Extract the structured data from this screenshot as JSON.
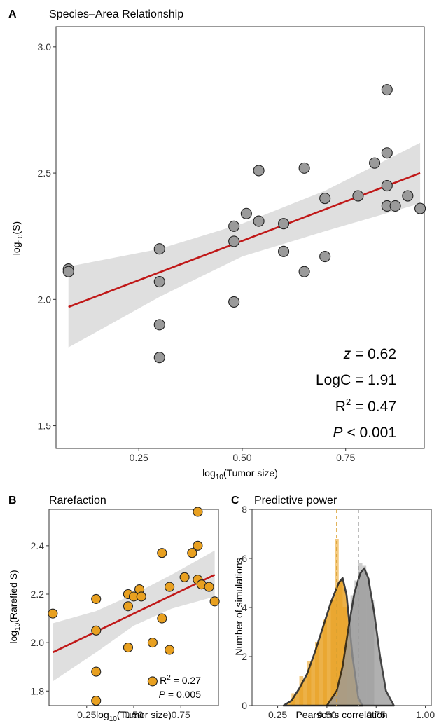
{
  "colors": {
    "points_gray": "#9a9a9a",
    "points_orange": "#e8a020",
    "regression": "#c01818",
    "ci_band": "#d9d9d9",
    "hist_orange": "#f0b44a",
    "hist_gray": "#b8b8b8",
    "dash_orange": "#d9a030",
    "dash_gray": "#9a9a9a"
  },
  "panelA": {
    "letter": "A",
    "title": "Species–Area Relationship",
    "ylabel_main": "log",
    "ylabel_sub": "10",
    "ylabel_rest": "(S)",
    "xlabel_main": "log",
    "xlabel_sub": "10",
    "xlabel_rest": "(Tumor size)",
    "stats": {
      "z_label": "z",
      "z_value": " = 0.62",
      "logc": "LogC = 1.91",
      "r2_main": "R",
      "r2_sup": "2",
      "r2_value": " = 0.47",
      "p_label": "P",
      "p_value": " < 0.001"
    }
  },
  "panelB": {
    "letter": "B",
    "title": "Rarefaction",
    "ylabel_main": "log",
    "ylabel_sub": "10",
    "ylabel_rest": "(Rarefied S)",
    "xlabel_main": "log",
    "xlabel_sub": "10",
    "xlabel_rest": "(Tumor size)",
    "stats": {
      "r2_main": "R",
      "r2_sup": "2",
      "r2_value": " = 0.27",
      "p_label": "P",
      "p_value": " = 0.005"
    }
  },
  "panelC": {
    "letter": "C",
    "title": "Predictive power",
    "ylabel": "Number of simulations",
    "xlabel": "Pearson's correlation"
  },
  "chart_data": [
    {
      "type": "scatter",
      "title": "Species–Area Relationship",
      "xlabel": "log10(Tumor size)",
      "ylabel": "log10(S)",
      "xlim": [
        0.05,
        0.94
      ],
      "ylim": [
        1.41,
        3.08
      ],
      "xticks": [
        0.25,
        0.5,
        0.75
      ],
      "xtick_labels": [
        "0.25",
        "0.50",
        "0.75"
      ],
      "yticks": [
        1.5,
        2.0,
        2.5,
        3.0
      ],
      "ytick_labels": [
        "1.5",
        "2.0",
        "2.5",
        "3.0"
      ],
      "grid": false,
      "points": [
        [
          0.08,
          2.12
        ],
        [
          0.08,
          2.11
        ],
        [
          0.3,
          2.2
        ],
        [
          0.3,
          2.07
        ],
        [
          0.3,
          1.9
        ],
        [
          0.3,
          1.77
        ],
        [
          0.48,
          2.29
        ],
        [
          0.48,
          2.23
        ],
        [
          0.48,
          1.99
        ],
        [
          0.51,
          2.34
        ],
        [
          0.54,
          2.51
        ],
        [
          0.54,
          2.31
        ],
        [
          0.6,
          2.3
        ],
        [
          0.6,
          2.19
        ],
        [
          0.65,
          2.52
        ],
        [
          0.65,
          2.11
        ],
        [
          0.7,
          2.4
        ],
        [
          0.7,
          2.17
        ],
        [
          0.78,
          2.41
        ],
        [
          0.82,
          2.54
        ],
        [
          0.85,
          2.83
        ],
        [
          0.85,
          2.58
        ],
        [
          0.85,
          2.45
        ],
        [
          0.85,
          2.37
        ],
        [
          0.87,
          2.37
        ],
        [
          0.9,
          2.41
        ],
        [
          0.93,
          2.36
        ]
      ],
      "fit": {
        "x": [
          0.08,
          0.93
        ],
        "y": [
          1.97,
          2.5
        ]
      },
      "ci_band": {
        "x": [
          0.08,
          0.3,
          0.5,
          0.7,
          0.93
        ],
        "lower": [
          1.81,
          2.01,
          2.17,
          2.27,
          2.38
        ],
        "upper": [
          2.13,
          2.2,
          2.3,
          2.43,
          2.62
        ]
      }
    },
    {
      "type": "scatter",
      "title": "Rarefaction",
      "xlabel": "log10(Tumor size)",
      "ylabel": "log10(Rarefied S)",
      "xlim": [
        0.05,
        0.95
      ],
      "ylim": [
        1.74,
        2.55
      ],
      "xticks": [
        0.25,
        0.5,
        0.75
      ],
      "xtick_labels": [
        "0.25",
        "0.50",
        "0.75"
      ],
      "yticks": [
        1.8,
        2.0,
        2.2,
        2.4
      ],
      "ytick_labels": [
        "1.8",
        "2.0",
        "2.2",
        "2.4"
      ],
      "grid": false,
      "points": [
        [
          0.07,
          2.12
        ],
        [
          0.3,
          2.18
        ],
        [
          0.3,
          2.05
        ],
        [
          0.3,
          1.88
        ],
        [
          0.3,
          1.76
        ],
        [
          0.47,
          2.2
        ],
        [
          0.47,
          2.15
        ],
        [
          0.47,
          1.98
        ],
        [
          0.5,
          2.19
        ],
        [
          0.53,
          2.22
        ],
        [
          0.54,
          2.19
        ],
        [
          0.6,
          2.0
        ],
        [
          0.6,
          1.84
        ],
        [
          0.65,
          2.37
        ],
        [
          0.65,
          2.1
        ],
        [
          0.69,
          2.23
        ],
        [
          0.69,
          1.97
        ],
        [
          0.77,
          2.27
        ],
        [
          0.81,
          2.37
        ],
        [
          0.84,
          2.54
        ],
        [
          0.84,
          2.4
        ],
        [
          0.84,
          2.26
        ],
        [
          0.86,
          2.24
        ],
        [
          0.9,
          2.23
        ],
        [
          0.93,
          2.17
        ]
      ],
      "fit": {
        "x": [
          0.07,
          0.93
        ],
        "y": [
          1.96,
          2.28
        ]
      },
      "ci_band": {
        "x": [
          0.07,
          0.3,
          0.5,
          0.7,
          0.93
        ],
        "lower": [
          1.84,
          1.96,
          2.07,
          2.14,
          2.19
        ],
        "upper": [
          2.08,
          2.13,
          2.2,
          2.28,
          2.38
        ]
      }
    },
    {
      "type": "area",
      "title": "Predictive power",
      "xlabel": "Pearson's correlation",
      "ylabel": "Number of simulations",
      "xlim": [
        0.12,
        1.03
      ],
      "ylim": [
        0,
        8
      ],
      "xticks": [
        0.25,
        0.5,
        0.75,
        1.0
      ],
      "xtick_labels": [
        "0.25",
        "0.50",
        "0.75",
        "1.00"
      ],
      "yticks": [
        0,
        2,
        4,
        6,
        8
      ],
      "ytick_labels": [
        "0",
        "2",
        "4",
        "6",
        "8"
      ],
      "grid": false,
      "histogram_bin_width": 0.02,
      "series": [
        {
          "color": "#e8a020",
          "x": [
            0.28,
            0.32,
            0.36,
            0.4,
            0.44,
            0.48,
            0.52,
            0.56,
            0.58,
            0.6,
            0.63,
            0.66,
            0.68
          ],
          "density": [
            0.0,
            0.2,
            0.7,
            1.3,
            2.2,
            3.2,
            4.2,
            5.0,
            5.2,
            4.5,
            2.0,
            0.3,
            0.0
          ],
          "hist_x": [
            0.33,
            0.37,
            0.41,
            0.45,
            0.49,
            0.53,
            0.55,
            0.57,
            0.59
          ],
          "hist_y": [
            0.5,
            1.2,
            1.8,
            2.6,
            3.5,
            4.3,
            6.8,
            5.1,
            4.0
          ],
          "dashed_mean": 0.55
        },
        {
          "color": "#9a9a9a",
          "x": [
            0.5,
            0.55,
            0.58,
            0.61,
            0.64,
            0.67,
            0.69,
            0.71,
            0.74,
            0.77,
            0.8,
            0.84
          ],
          "density": [
            0.0,
            0.6,
            1.6,
            3.2,
            4.6,
            5.4,
            5.6,
            5.2,
            3.8,
            2.0,
            0.6,
            0.0
          ],
          "hist_x": [
            0.61,
            0.63,
            0.65,
            0.67,
            0.69,
            0.71,
            0.73
          ],
          "hist_y": [
            3.5,
            4.5,
            5.1,
            5.8,
            5.7,
            5.2,
            4.3
          ],
          "dashed_mean": 0.66
        }
      ]
    }
  ]
}
